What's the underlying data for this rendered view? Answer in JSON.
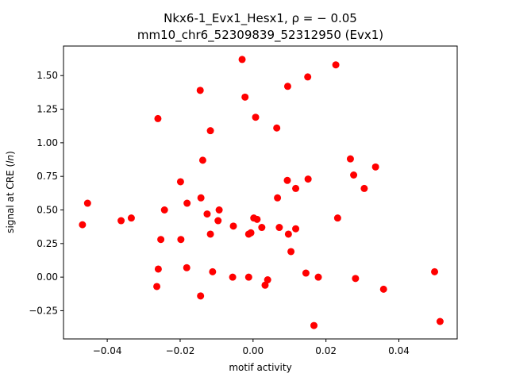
{
  "chart_data": {
    "type": "scatter",
    "title_line1": "Nkx6-1_Evx1_Hesx1, ρ = − 0.05",
    "title_line2": "mm10_chr6_52309839_52312950 (Evx1)",
    "xlabel": "motif activity",
    "ylabel": "signal at CRE (ln)",
    "xlim": [
      -0.052,
      0.056
    ],
    "ylim": [
      -0.46,
      1.72
    ],
    "xticks": [
      -0.04,
      -0.02,
      0.0,
      0.02,
      0.04
    ],
    "xtick_labels": [
      "−0.04",
      "−0.02",
      "0.00",
      "0.02",
      "0.04"
    ],
    "yticks": [
      -0.25,
      0.0,
      0.25,
      0.5,
      0.75,
      1.0,
      1.25,
      1.5
    ],
    "ytick_labels": [
      "−0.25",
      "0.00",
      "0.25",
      "0.50",
      "0.75",
      "1.00",
      "1.25",
      "1.50"
    ],
    "grid": false,
    "marker_color": "#ff0000",
    "points": [
      [
        -0.0468,
        0.39
      ],
      [
        -0.0454,
        0.55
      ],
      [
        -0.0362,
        0.42
      ],
      [
        -0.0334,
        0.44
      ],
      [
        -0.0261,
        1.18
      ],
      [
        -0.0264,
        -0.07
      ],
      [
        -0.026,
        0.06
      ],
      [
        -0.0253,
        0.28
      ],
      [
        -0.0243,
        0.5
      ],
      [
        -0.0199,
        0.71
      ],
      [
        -0.0198,
        0.28
      ],
      [
        -0.0181,
        0.55
      ],
      [
        -0.0182,
        0.07
      ],
      [
        -0.0145,
        1.39
      ],
      [
        -0.0143,
        0.59
      ],
      [
        -0.0138,
        0.87
      ],
      [
        -0.0144,
        -0.14
      ],
      [
        -0.0126,
        0.47
      ],
      [
        -0.0117,
        1.09
      ],
      [
        -0.0117,
        0.32
      ],
      [
        -0.0111,
        0.04
      ],
      [
        -0.0096,
        0.42
      ],
      [
        -0.0093,
        0.5
      ],
      [
        -0.0054,
        0.38
      ],
      [
        -0.0056,
        0.0
      ],
      [
        -0.003,
        1.62
      ],
      [
        -0.0022,
        1.34
      ],
      [
        -0.0012,
        0.32
      ],
      [
        -0.0012,
        0.0
      ],
      [
        -0.0006,
        0.33
      ],
      [
        0.0002,
        0.44
      ],
      [
        0.0007,
        1.19
      ],
      [
        0.0011,
        0.43
      ],
      [
        0.0024,
        0.37
      ],
      [
        0.0033,
        -0.06
      ],
      [
        0.004,
        -0.02
      ],
      [
        0.0065,
        1.11
      ],
      [
        0.0067,
        0.59
      ],
      [
        0.0072,
        0.37
      ],
      [
        0.0095,
        1.42
      ],
      [
        0.0094,
        0.72
      ],
      [
        0.0097,
        0.32
      ],
      [
        0.0104,
        0.19
      ],
      [
        0.0117,
        0.36
      ],
      [
        0.0117,
        0.66
      ],
      [
        0.0145,
        0.03
      ],
      [
        0.015,
        1.49
      ],
      [
        0.0151,
        0.73
      ],
      [
        0.0167,
        -0.36
      ],
      [
        0.0179,
        0.0
      ],
      [
        0.0227,
        1.58
      ],
      [
        0.0232,
        0.44
      ],
      [
        0.0267,
        0.88
      ],
      [
        0.0276,
        0.76
      ],
      [
        0.0281,
        -0.01
      ],
      [
        0.0305,
        0.66
      ],
      [
        0.0336,
        0.82
      ],
      [
        0.0358,
        -0.09
      ],
      [
        0.0498,
        0.04
      ],
      [
        0.0513,
        -0.33
      ]
    ]
  }
}
